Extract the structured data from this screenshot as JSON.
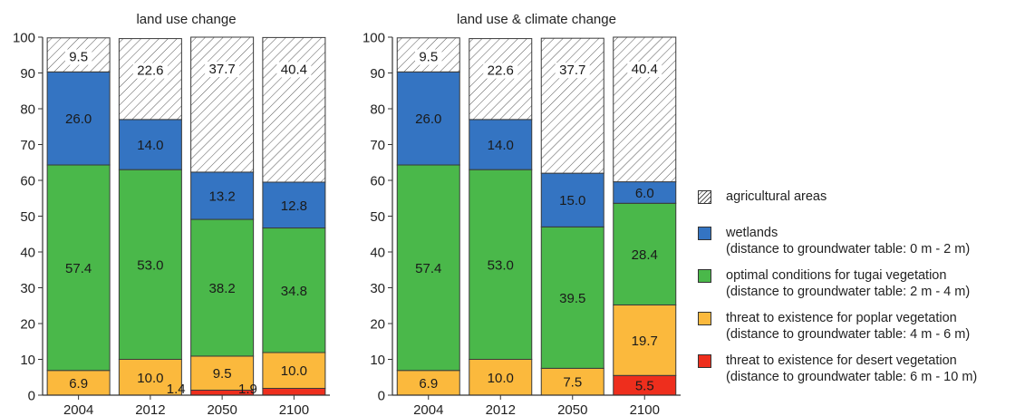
{
  "chart_data": [
    {
      "type": "bar",
      "stacked": true,
      "title": "land use change",
      "categories": [
        "2004",
        "2012",
        "2050",
        "2100"
      ],
      "ylim": [
        0,
        100
      ],
      "yticks": [
        0,
        10,
        20,
        30,
        40,
        50,
        60,
        70,
        80,
        90,
        100
      ],
      "series": [
        {
          "key": "desert",
          "values": [
            0,
            0,
            1.4,
            1.9
          ],
          "labels": [
            "",
            "",
            "1.4",
            "1.9"
          ]
        },
        {
          "key": "poplar",
          "values": [
            6.9,
            10.0,
            9.5,
            10.0
          ],
          "labels": [
            "6.9",
            "10.0",
            "9.5",
            "10.0"
          ]
        },
        {
          "key": "tugai",
          "values": [
            57.4,
            53.0,
            38.2,
            34.8
          ],
          "labels": [
            "57.4",
            "53.0",
            "38.2",
            "34.8"
          ]
        },
        {
          "key": "wetlands",
          "values": [
            26.0,
            14.0,
            13.2,
            12.8
          ],
          "labels": [
            "26.0",
            "14.0",
            "13.2",
            "12.8"
          ]
        },
        {
          "key": "agricultural",
          "values": [
            9.5,
            22.6,
            37.7,
            40.4
          ],
          "labels": [
            "9.5",
            "22.6",
            "37.7",
            "40.4"
          ]
        }
      ]
    },
    {
      "type": "bar",
      "stacked": true,
      "title": "land use & climate change",
      "categories": [
        "2004",
        "2012",
        "2050",
        "2100"
      ],
      "ylim": [
        0,
        100
      ],
      "yticks": [
        0,
        10,
        20,
        30,
        40,
        50,
        60,
        70,
        80,
        90,
        100
      ],
      "series": [
        {
          "key": "desert",
          "values": [
            0,
            0,
            0,
            5.5
          ],
          "labels": [
            "",
            "",
            "",
            "5.5"
          ]
        },
        {
          "key": "poplar",
          "values": [
            6.9,
            10.0,
            7.5,
            19.7
          ],
          "labels": [
            "6.9",
            "10.0",
            "7.5",
            "19.7"
          ]
        },
        {
          "key": "tugai",
          "values": [
            57.4,
            53.0,
            39.5,
            28.4
          ],
          "labels": [
            "57.4",
            "53.0",
            "39.5",
            "28.4"
          ]
        },
        {
          "key": "wetlands",
          "values": [
            26.0,
            14.0,
            15.0,
            6.0
          ],
          "labels": [
            "26.0",
            "14.0",
            "15.0",
            "6.0"
          ]
        },
        {
          "key": "agricultural",
          "values": [
            9.5,
            22.6,
            37.7,
            40.4
          ],
          "labels": [
            "9.5",
            "22.6",
            "37.7",
            "40.4"
          ]
        }
      ]
    }
  ],
  "colors": {
    "desert": "#ee2e1d",
    "poplar": "#fbb93d",
    "tugai": "#4ab84a",
    "wetlands": "#3474c2",
    "agricultural": "hatch"
  },
  "legend": [
    {
      "key": "agricultural",
      "line1": "agricultural areas",
      "line2": ""
    },
    {
      "key": "wetlands",
      "line1": "wetlands",
      "line2": "(distance to groundwater table: 0 m - 2 m)"
    },
    {
      "key": "tugai",
      "line1": "optimal conditions for tugai vegetation",
      "line2": "(distance to groundwater table: 2 m - 4 m)"
    },
    {
      "key": "poplar",
      "line1": "threat to existence  for poplar vegetation",
      "line2": "(distance to groundwater table: 4 m - 6 m)"
    },
    {
      "key": "desert",
      "line1": "threat to existence  for desert vegetation",
      "line2": "(distance to groundwater table: 6 m - 10 m)"
    }
  ]
}
